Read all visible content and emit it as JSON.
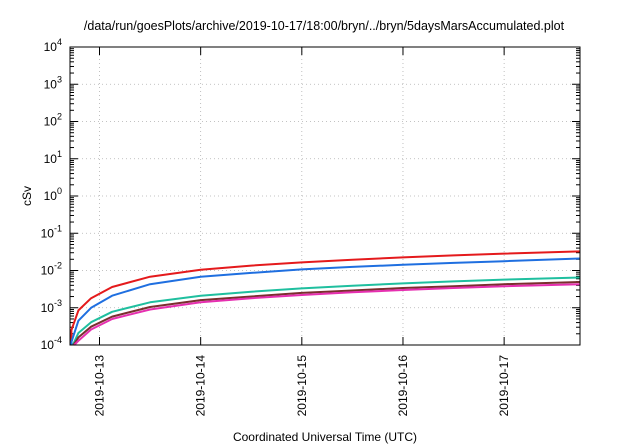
{
  "chart_data": {
    "type": "line",
    "title": "/data/run/goesPlots/archive/2019-10-17/18:00/bryn/../bryn/5daysMarsAccumulated.plot",
    "xlabel": "Coordinated Universal Time (UTC)",
    "ylabel": "cSv",
    "x_scale": "time",
    "xlim": [
      "2019-10-12T17:00",
      "2019-10-17T18:00"
    ],
    "x_ticks": [
      "2019-10-13",
      "2019-10-14",
      "2019-10-15",
      "2019-10-16",
      "2019-10-17"
    ],
    "y_scale": "log",
    "ylim": [
      0.0001,
      10000
    ],
    "y_ticks": [
      {
        "value": 0.0001,
        "base": "10",
        "exp": "-4"
      },
      {
        "value": 0.001,
        "base": "10",
        "exp": "-3"
      },
      {
        "value": 0.01,
        "base": "10",
        "exp": "-2"
      },
      {
        "value": 0.1,
        "base": "10",
        "exp": "-1"
      },
      {
        "value": 1,
        "base": "10",
        "exp": "0"
      },
      {
        "value": 10,
        "base": "10",
        "exp": "1"
      },
      {
        "value": 100,
        "base": "10",
        "exp": "2"
      },
      {
        "value": 1000,
        "base": "10",
        "exp": "3"
      },
      {
        "value": 10000,
        "base": "10",
        "exp": "4"
      }
    ],
    "grid": true,
    "legend": "none",
    "series": [
      {
        "color": "#e41a1c",
        "x": [
          "2019-10-12T17:20",
          "2019-10-12T19:00",
          "2019-10-12T22:00",
          "2019-10-13T03:00",
          "2019-10-13T12:00",
          "2019-10-14T00:00",
          "2019-10-14T12:00",
          "2019-10-15T00:00",
          "2019-10-15T12:00",
          "2019-10-16T00:00",
          "2019-10-16T12:00",
          "2019-10-17T00:00",
          "2019-10-17T18:00"
        ],
        "y": [
          0.00025,
          0.00085,
          0.0018,
          0.0036,
          0.0068,
          0.0105,
          0.0135,
          0.0165,
          0.0195,
          0.0225,
          0.0255,
          0.0285,
          0.0325
        ]
      },
      {
        "color": "#1f6fe0",
        "x": [
          "2019-10-12T17:20",
          "2019-10-12T19:00",
          "2019-10-12T22:00",
          "2019-10-13T03:00",
          "2019-10-13T12:00",
          "2019-10-14T00:00",
          "2019-10-14T12:00",
          "2019-10-15T00:00",
          "2019-10-15T12:00",
          "2019-10-16T00:00",
          "2019-10-16T12:00",
          "2019-10-17T00:00",
          "2019-10-17T18:00"
        ],
        "y": [
          0.00012,
          0.00045,
          0.001,
          0.0021,
          0.0043,
          0.0068,
          0.0086,
          0.0107,
          0.0125,
          0.0142,
          0.016,
          0.0178,
          0.021
        ]
      },
      {
        "color": "#1fbf9f",
        "x": [
          "2019-10-12T17:40",
          "2019-10-12T19:00",
          "2019-10-12T22:00",
          "2019-10-13T03:00",
          "2019-10-13T12:00",
          "2019-10-14T00:00",
          "2019-10-14T12:00",
          "2019-10-15T00:00",
          "2019-10-15T12:00",
          "2019-10-16T00:00",
          "2019-10-16T12:00",
          "2019-10-17T00:00",
          "2019-10-17T18:00"
        ],
        "y": [
          0.0001,
          0.00021,
          0.00041,
          0.00078,
          0.0014,
          0.0021,
          0.0027,
          0.0033,
          0.0039,
          0.0045,
          0.0051,
          0.0057,
          0.0065
        ]
      },
      {
        "color": "#7a2e2e",
        "x": [
          "2019-10-12T17:50",
          "2019-10-12T19:00",
          "2019-10-12T22:00",
          "2019-10-13T03:00",
          "2019-10-13T12:00",
          "2019-10-14T00:00",
          "2019-10-14T12:00",
          "2019-10-15T00:00",
          "2019-10-15T12:00",
          "2019-10-16T00:00",
          "2019-10-16T12:00",
          "2019-10-17T00:00",
          "2019-10-17T18:00"
        ],
        "y": [
          0.0001,
          0.00016,
          0.00031,
          0.00058,
          0.00105,
          0.0016,
          0.002,
          0.0025,
          0.0029,
          0.0034,
          0.0038,
          0.0043,
          0.0049
        ]
      },
      {
        "color": "#e62fb0",
        "x": [
          "2019-10-12T18:00",
          "2019-10-12T19:00",
          "2019-10-12T22:00",
          "2019-10-13T03:00",
          "2019-10-13T12:00",
          "2019-10-14T00:00",
          "2019-10-14T12:00",
          "2019-10-15T00:00",
          "2019-10-15T12:00",
          "2019-10-16T00:00",
          "2019-10-16T12:00",
          "2019-10-17T00:00",
          "2019-10-17T18:00"
        ],
        "y": [
          0.0001,
          0.00013,
          0.00026,
          0.0005,
          0.0009,
          0.0014,
          0.0018,
          0.0022,
          0.0026,
          0.003,
          0.0034,
          0.0038,
          0.0043
        ]
      }
    ]
  }
}
